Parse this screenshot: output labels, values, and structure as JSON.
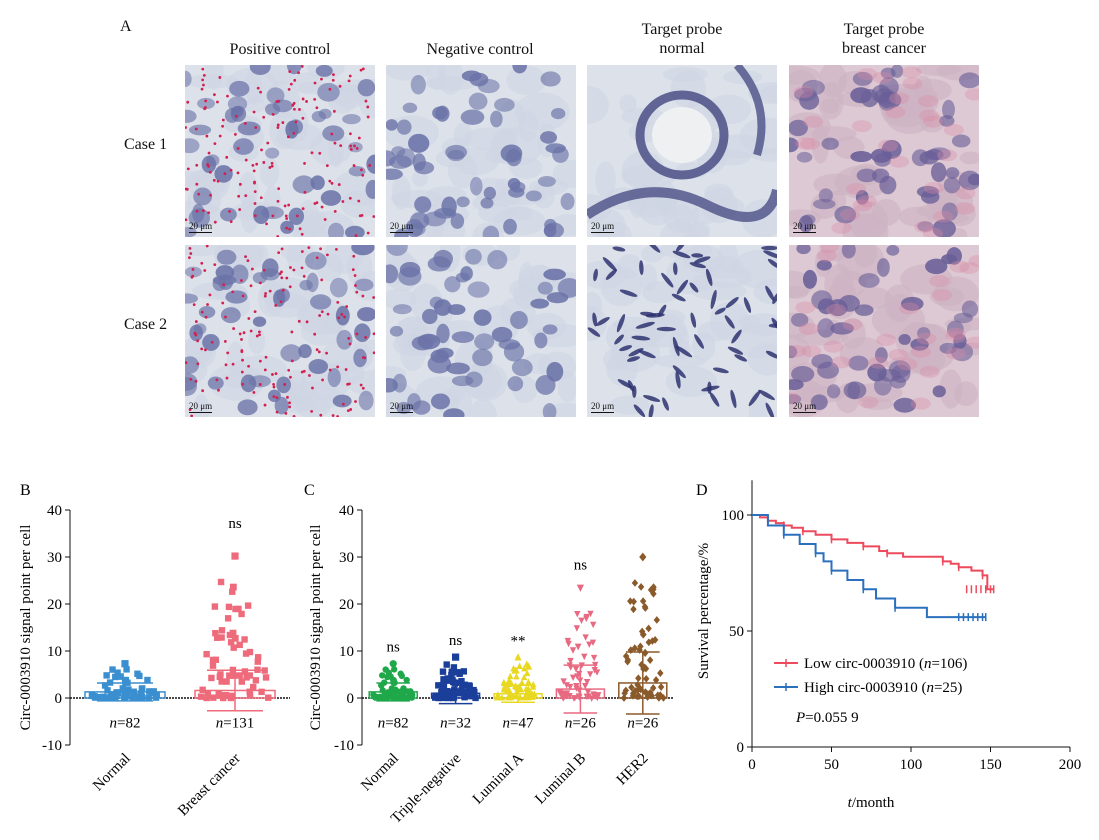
{
  "panel_a": {
    "letter": "A",
    "columns": [
      {
        "line1": "Positive control",
        "line2": ""
      },
      {
        "line1": "Negative control",
        "line2": ""
      },
      {
        "line1": "Target probe",
        "line2": "normal"
      },
      {
        "line1": "Target probe",
        "line2": "breast cancer"
      }
    ],
    "rows": [
      "Case 1",
      "Case 2"
    ],
    "scale_bar": "20 μm"
  },
  "chart_data": [
    {
      "panel": "B",
      "type": "scatter",
      "ylabel": "Circ-0003910 signal point per cell",
      "ylim": [
        -10,
        40
      ],
      "yticks": [
        -10,
        0,
        10,
        20,
        30,
        40
      ],
      "categories": [
        "Normal",
        "Breast cancer"
      ],
      "series": [
        {
          "name": "Normal",
          "mean": 1.3,
          "sd": 1.9,
          "max": 7.3,
          "n_label": "n=82",
          "sig": "",
          "color": "#3a8fd0"
        },
        {
          "name": "Breast cancer",
          "mean": 1.6,
          "sd": 4.3,
          "max": 30.2,
          "outliers": [
            23.6,
            13.8,
            12.7
          ],
          "n_label": "n=131",
          "sig": "ns",
          "color": "#ee6b7b"
        }
      ]
    },
    {
      "panel": "C",
      "type": "scatter",
      "ylabel": "Circ-0003910 signal point per cell",
      "ylim": [
        -10,
        40
      ],
      "yticks": [
        -10,
        0,
        10,
        20,
        30,
        40
      ],
      "categories": [
        "Normal",
        "Triple-negative",
        "Luminal A",
        "Luminal B",
        "HER2"
      ],
      "series": [
        {
          "name": "Normal",
          "mean": 1.3,
          "sd": 1.9,
          "max": 7.3,
          "n_label": "n=82",
          "sig": "ns",
          "color": "#1fa84a",
          "marker": "circle"
        },
        {
          "name": "Triple-negative",
          "mean": 1.0,
          "sd": 2.2,
          "max": 8.7,
          "n_label": "n=32",
          "sig": "ns",
          "color": "#1a3f9a",
          "marker": "square"
        },
        {
          "name": "Luminal A",
          "mean": 0.9,
          "sd": 1.8,
          "max": 8.6,
          "n_label": "n=47",
          "sig": "**",
          "color": "#e8d820",
          "marker": "triangle"
        },
        {
          "name": "Luminal B",
          "mean": 1.9,
          "sd": 5.1,
          "max": 23.5,
          "outliers": [
            11.0
          ],
          "n_label": "n=26",
          "sig": "ns",
          "color": "#e86a82",
          "marker": "triangle-down"
        },
        {
          "name": "HER2",
          "mean": 3.2,
          "sd": 6.6,
          "max": 30.0,
          "outliers": [
            13.5,
            9.6
          ],
          "n_label": "n=26",
          "sig": "",
          "color": "#8b5a2b",
          "marker": "diamond"
        }
      ]
    },
    {
      "panel": "D",
      "type": "line",
      "ylabel": "Survival percentage/%",
      "xlabel_italic": "t",
      "xlabel_rest": "/month",
      "xlim": [
        0,
        200
      ],
      "ylim": [
        0,
        100
      ],
      "xticks": [
        0,
        50,
        100,
        150,
        200
      ],
      "yticks": [
        0,
        50,
        100
      ],
      "series": [
        {
          "name": "Low circ-0003910",
          "n_label": "n=106",
          "color": "#ee4a5d",
          "points": [
            [
              0,
              100
            ],
            [
              5,
              99
            ],
            [
              10,
              97.5
            ],
            [
              15,
              96.5
            ],
            [
              20,
              95.5
            ],
            [
              25,
              94.5
            ],
            [
              32,
              93
            ],
            [
              40,
              91.5
            ],
            [
              50,
              89.5
            ],
            [
              60,
              88
            ],
            [
              70,
              86.5
            ],
            [
              80,
              84.5
            ],
            [
              85,
              83.5
            ],
            [
              95,
              82
            ],
            [
              120,
              80
            ],
            [
              125,
              79
            ],
            [
              130,
              77.5
            ],
            [
              138,
              76
            ],
            [
              145,
              74
            ],
            [
              148,
              68
            ],
            [
              152,
              68
            ]
          ]
        },
        {
          "name": "High circ-0003910",
          "n_label": "n=25",
          "color": "#2a70bd",
          "points": [
            [
              0,
              100
            ],
            [
              10,
              95.5
            ],
            [
              20,
              91.5
            ],
            [
              30,
              87.5
            ],
            [
              40,
              83.5
            ],
            [
              45,
              80
            ],
            [
              50,
              76
            ],
            [
              60,
              72
            ],
            [
              70,
              68
            ],
            [
              78,
              64
            ],
            [
              90,
              60
            ],
            [
              110,
              56
            ],
            [
              147,
              56
            ]
          ]
        }
      ],
      "p_label_italic": "P",
      "p_label_rest": "=0.055 9"
    }
  ]
}
